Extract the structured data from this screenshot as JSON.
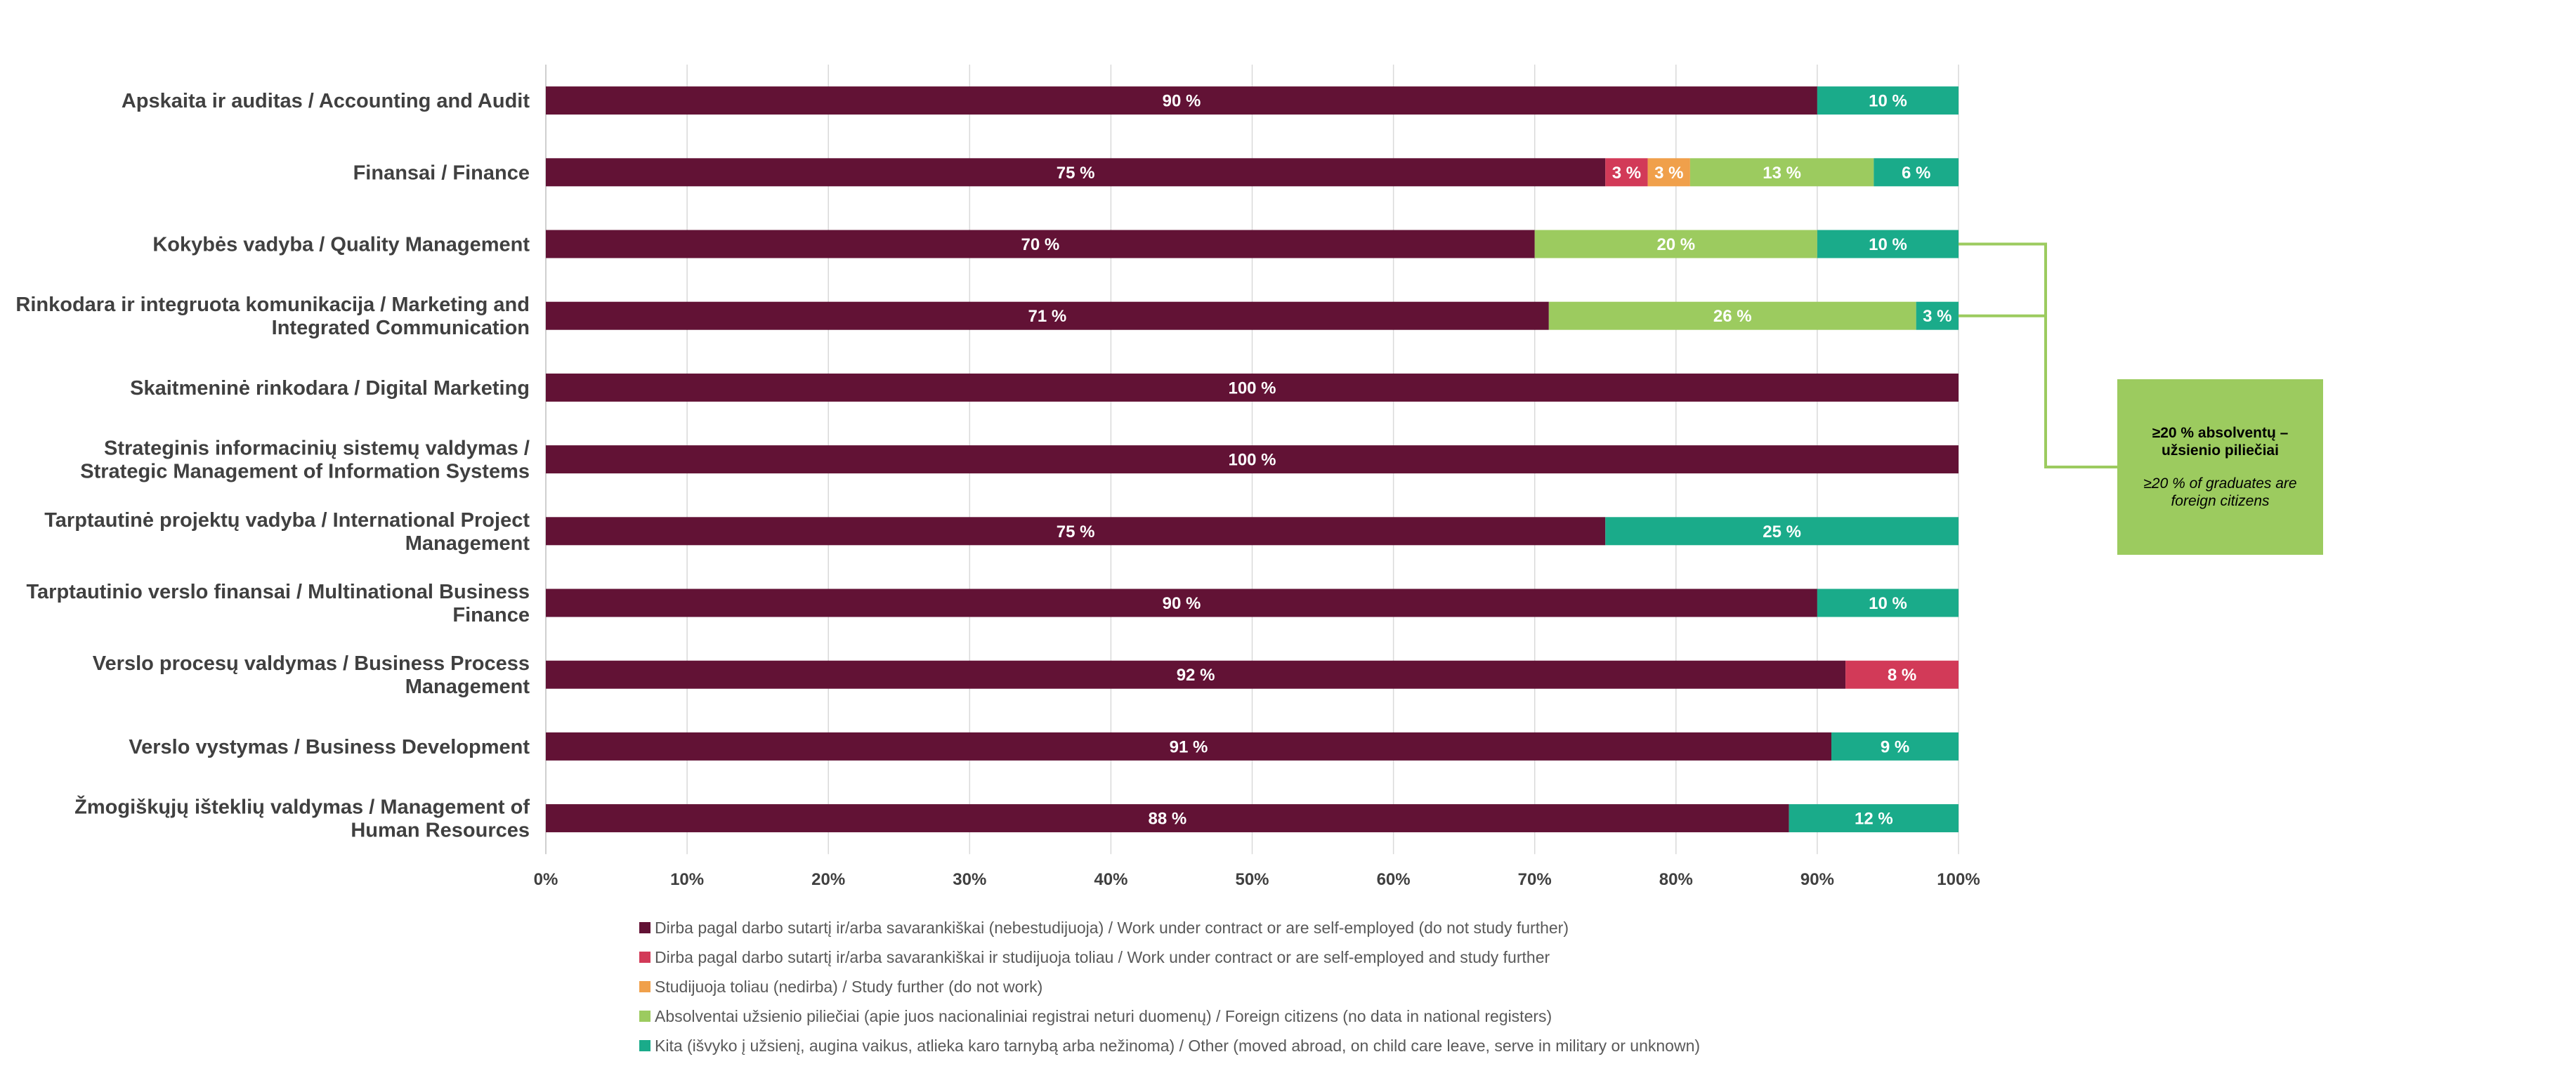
{
  "chart_data": {
    "type": "bar",
    "orientation": "horizontal",
    "stacked": true,
    "percent_stacked": true,
    "categories": [
      "Apskaita ir auditas / Accounting and Audit",
      "Finansai / Finance",
      "Kokybės vadyba / Quality Management",
      "Rinkodara ir integruota komunikacija / Marketing and Integrated Communication",
      "Skaitmeninė rinkodara / Digital Marketing",
      "Strateginis informacinių sistemų valdymas / Strategic Management of Information Systems",
      "Tarptautinė projektų vadyba / International Project Management",
      "Tarptautinio verslo finansai / Multinational Business Finance",
      "Verslo procesų valdymas / Business Process Management",
      "Verslo vystymas / Business Development",
      "Žmogiškųjų išteklių valdymas / Management of Human Resources"
    ],
    "category_lines": [
      [
        "Apskaita ir auditas / Accounting and Audit"
      ],
      [
        "Finansai / Finance"
      ],
      [
        "Kokybės vadyba / Quality Management"
      ],
      [
        "Rinkodara ir integruota komunikacija / Marketing and",
        "Integrated Communication"
      ],
      [
        "Skaitmeninė rinkodara / Digital Marketing"
      ],
      [
        "Strateginis informacinių sistemų valdymas /",
        "Strategic Management of Information Systems"
      ],
      [
        "Tarptautinė projektų vadyba / International Project",
        "Management"
      ],
      [
        "Tarptautinio verslo finansai / Multinational Business",
        "Finance"
      ],
      [
        "Verslo procesų valdymas / Business Process",
        "Management"
      ],
      [
        "Verslo vystymas / Business Development"
      ],
      [
        "Žmogiškųjų išteklių valdymas / Management of",
        "Human Resources"
      ]
    ],
    "series": [
      {
        "name": "Dirba pagal darbo sutartį ir/arba savarankiškai (nebestudijuoja) / Work under contract or are self-employed (do not study further)",
        "color": "#621235",
        "values": [
          90,
          75,
          70,
          71,
          100,
          100,
          75,
          90,
          92,
          91,
          88
        ]
      },
      {
        "name": "Dirba pagal darbo sutartį ir/arba savarankiškai  ir studijuoja toliau / Work under contract or are self-employed and study further",
        "color": "#d23a58",
        "values": [
          0,
          3,
          0,
          0,
          0,
          0,
          0,
          0,
          8,
          0,
          0
        ]
      },
      {
        "name": "Studijuoja toliau (nedirba) / Study further (do not work)",
        "color": "#f0a04b",
        "values": [
          0,
          3,
          0,
          0,
          0,
          0,
          0,
          0,
          0,
          0,
          0
        ]
      },
      {
        "name": "Absolventai užsienio piliečiai (apie juos nacionaliniai registrai neturi duomenų) / Foreign citizens (no data in national registers)",
        "color": "#9ccb5f",
        "values": [
          0,
          13,
          20,
          26,
          0,
          0,
          0,
          0,
          0,
          0,
          0
        ]
      },
      {
        "name": "Kita (išvyko į užsienį, augina vaikus, atlieka karo tarnybą arba nežinoma) / Other (moved abroad, on child care leave, serve in military or unknown)",
        "color": "#1aab8a",
        "values": [
          10,
          6,
          10,
          3,
          0,
          0,
          25,
          10,
          0,
          9,
          12
        ]
      }
    ],
    "xlim": [
      0,
      100
    ],
    "x_ticks": [
      "0%",
      "10%",
      "20%",
      "30%",
      "40%",
      "50%",
      "60%",
      "70%",
      "80%",
      "90%",
      "100%"
    ],
    "data_label_suffix": " %",
    "grid": "vertical",
    "legend_position": "bottom",
    "callout": {
      "title": "≥20 % absolventų – užsienio piliečiai",
      "subtitle": "≥20 % of graduates are foreign citizens",
      "color": "#9ccb5f",
      "linked_categories": [
        2,
        3
      ]
    }
  }
}
